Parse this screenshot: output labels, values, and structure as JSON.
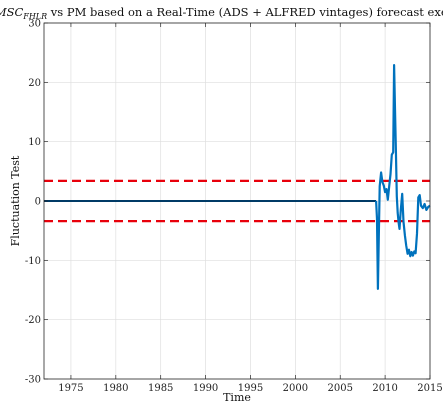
{
  "chart_data": {
    "type": "line",
    "title_main": "MSC",
    "title_sub": "FHLR",
    "title_rest": " vs PM based on a Real-Time (ADS + ALFRED vintages) forecast exercis",
    "xlabel": "Time",
    "ylabel": "Fluctuation Test",
    "xlim": [
      1972,
      2015
    ],
    "ylim": [
      -30,
      30
    ],
    "xticks": [
      1975,
      1980,
      1985,
      1990,
      1995,
      2000,
      2005,
      2010,
      2015
    ],
    "yticks": [
      -30,
      -20,
      -10,
      0,
      10,
      20,
      30
    ],
    "grid": true,
    "colors": {
      "series": "#0072bd",
      "baseline": "#003a66",
      "critical": "#e8000b"
    },
    "baseline": {
      "y": 0,
      "x": [
        1972,
        2009.0
      ]
    },
    "critical_values": [
      3.39,
      -3.39
    ],
    "series": [
      {
        "x": [
          2009.0,
          2009.1,
          2009.2,
          2009.3,
          2009.4,
          2009.55,
          2009.7,
          2009.85,
          2010.0,
          2010.15,
          2010.3,
          2010.45,
          2010.6,
          2010.75,
          2010.9,
          2011.0,
          2011.1,
          2011.2,
          2011.3,
          2011.4,
          2011.5,
          2011.6,
          2011.75,
          2011.9,
          2012.05,
          2012.2,
          2012.35,
          2012.5,
          2012.65,
          2012.8,
          2012.95,
          2013.1,
          2013.25,
          2013.4,
          2013.55,
          2013.7,
          2013.85,
          2014.0,
          2014.2,
          2014.4,
          2014.6,
          2014.8,
          2015.0
        ],
        "y": [
          0,
          -3,
          -14.8,
          -6,
          2.5,
          4.8,
          3.2,
          2.6,
          1.5,
          2.0,
          0.2,
          2.5,
          4.5,
          7.8,
          8.2,
          22.9,
          15.5,
          8.5,
          0.8,
          -2.0,
          -3.6,
          -4.7,
          -1.5,
          1.2,
          -3.5,
          -5.8,
          -7.5,
          -8.9,
          -8.2,
          -9.3,
          -8.6,
          -9.2,
          -8.5,
          -8.8,
          -5.5,
          0.6,
          1.0,
          -0.8,
          -1.2,
          -0.5,
          -1.5,
          -1.0,
          -0.8
        ]
      }
    ]
  }
}
